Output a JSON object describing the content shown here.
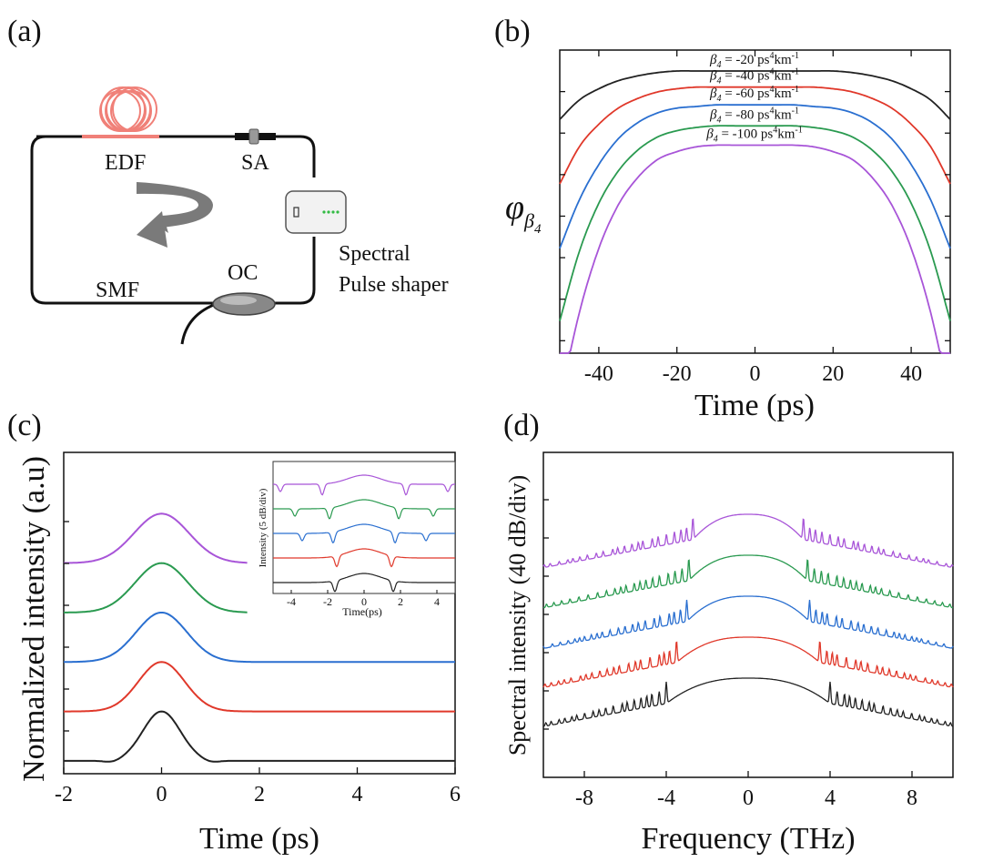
{
  "panels": {
    "a": {
      "tag": "(a)",
      "labels": {
        "edf": "EDF",
        "sa": "SA",
        "smf": "SMF",
        "oc": "OC",
        "shaper_line1": "Spectral",
        "shaper_line2": "Pulse shaper"
      },
      "colors": {
        "edf_coil": "#f08078",
        "fiber": "#111111",
        "arrow": "#7a7a7a",
        "leds": "#33bb44"
      }
    },
    "b": {
      "tag": "(b)"
    },
    "c": {
      "tag": "(c)"
    },
    "d": {
      "tag": "(d)"
    }
  },
  "chart_data": [
    {
      "panel": "b",
      "type": "line",
      "xlabel": "Time (ps)",
      "ylabel": "φβ4",
      "ylabel_main": "φ",
      "ylabel_sub": "β",
      "ylabel_subsub": "4",
      "xlim": [
        -50,
        50
      ],
      "xticks": [
        -40,
        -20,
        0,
        20,
        40
      ],
      "x": [
        -50,
        -45,
        -40,
        -35,
        -30,
        -25,
        -20,
        -15,
        -10,
        -5,
        0,
        5,
        10,
        15,
        20,
        25,
        30,
        35,
        40,
        45,
        50
      ],
      "series": [
        {
          "name": "β4 = -20 ps⁴km⁻¹",
          "label_prefix": "β",
          "label_sub": "4",
          "label_mid": " = -20 ps",
          "label_sup1": "4",
          "label_mid2": "km",
          "label_sup2": "-1",
          "color": "#222222",
          "values": [
            0.7,
            0.82,
            0.89,
            0.94,
            0.97,
            0.99,
            1.0,
            1.0,
            1.0,
            1.0,
            1.0,
            1.0,
            1.0,
            1.0,
            1.0,
            0.99,
            0.97,
            0.94,
            0.89,
            0.82,
            0.7
          ]
        },
        {
          "name": "β4 = -40 ps⁴km⁻¹",
          "label_prefix": "β",
          "label_sub": "4",
          "label_mid": " = -40 ps",
          "label_sup1": "4",
          "label_mid2": "km",
          "label_sup2": "-1",
          "color": "#e0382a",
          "values": [
            0.3,
            0.53,
            0.67,
            0.77,
            0.83,
            0.87,
            0.89,
            0.9,
            0.9,
            0.9,
            0.9,
            0.9,
            0.9,
            0.9,
            0.89,
            0.87,
            0.83,
            0.77,
            0.67,
            0.53,
            0.3
          ]
        },
        {
          "name": "β4 = -60 ps⁴km⁻¹",
          "label_prefix": "β",
          "label_sub": "4",
          "label_mid": " = -60 ps",
          "label_sup1": "4",
          "label_mid2": "km",
          "label_sup2": "-1",
          "color": "#2a6fd0",
          "values": [
            -0.1,
            0.2,
            0.42,
            0.58,
            0.68,
            0.74,
            0.77,
            0.78,
            0.79,
            0.79,
            0.79,
            0.79,
            0.79,
            0.78,
            0.77,
            0.74,
            0.68,
            0.58,
            0.42,
            0.2,
            -0.1
          ]
        },
        {
          "name": "β4 = -80 ps⁴km⁻¹",
          "label_prefix": "β",
          "label_sub": "4",
          "label_mid": " = -80 ps",
          "label_sup1": "4",
          "label_mid2": "km",
          "label_sup2": "-1",
          "color": "#2a9a50",
          "values": [
            -0.55,
            -0.12,
            0.18,
            0.38,
            0.51,
            0.59,
            0.63,
            0.65,
            0.66,
            0.66,
            0.66,
            0.66,
            0.66,
            0.65,
            0.63,
            0.59,
            0.51,
            0.38,
            0.18,
            -0.12,
            -0.55
          ]
        },
        {
          "name": "β4 = -100 ps⁴km⁻¹",
          "label_prefix": "β",
          "label_sub": "4",
          "label_mid": " = -100 ps",
          "label_sup1": "4",
          "label_mid2": "km",
          "label_sup2": "-1",
          "color": "#a855d8",
          "values": [
            -1.05,
            -0.5,
            -0.1,
            0.17,
            0.34,
            0.45,
            0.5,
            0.53,
            0.54,
            0.54,
            0.54,
            0.54,
            0.54,
            0.53,
            0.5,
            0.45,
            0.34,
            0.17,
            -0.1,
            -0.5,
            -1.05
          ]
        }
      ],
      "ylim": [
        -0.75,
        1.13
      ]
    },
    {
      "panel": "c",
      "type": "line",
      "xlabel": "Time (ps)",
      "ylabel": "Normalized intensity (a.u)",
      "xlim": [
        -2,
        6
      ],
      "xticks": [
        -2,
        0,
        2,
        4,
        6
      ],
      "ylim": [
        -0.2,
        6.3
      ],
      "series": [
        {
          "color": "#222222",
          "offset": 0,
          "width": 0.85,
          "end": 6
        },
        {
          "color": "#e0382a",
          "offset": 1,
          "width": 1.05,
          "end": 6
        },
        {
          "color": "#2a6fd0",
          "offset": 2,
          "width": 1.15,
          "end": 6
        },
        {
          "color": "#2a9a50",
          "offset": 3,
          "width": 1.2,
          "end": 1.75
        },
        {
          "color": "#a855d8",
          "offset": 4,
          "width": 1.25,
          "end": 1.75
        }
      ],
      "inset": {
        "xlabel": "Time(ps)",
        "ylabel": "Intensity (5 dB/div)",
        "xlim": [
          -5,
          5
        ],
        "xticks": [
          -4,
          -2,
          0,
          2,
          4
        ],
        "series": [
          {
            "color": "#222222",
            "dip": 1.6
          },
          {
            "color": "#e0382a",
            "dip": 1.5
          },
          {
            "color": "#2a6fd0",
            "dip": 1.7
          },
          {
            "color": "#2a9a50",
            "dip": 1.9
          },
          {
            "color": "#a855d8",
            "dip": 2.3
          }
        ]
      }
    },
    {
      "panel": "d",
      "type": "line",
      "xlabel": "Frequency (THz)",
      "ylabel": "Spectral intensity (40 dB/div)",
      "xlim": [
        -10,
        10
      ],
      "xticks": [
        -8,
        -4,
        0,
        4,
        8
      ],
      "series": [
        {
          "color": "#222222",
          "edge": 4.0
        },
        {
          "color": "#e0382a",
          "edge": 3.5
        },
        {
          "color": "#2a6fd0",
          "edge": 3.0
        },
        {
          "color": "#2a9a50",
          "edge": 2.9
        },
        {
          "color": "#a855d8",
          "edge": 2.7
        }
      ]
    }
  ]
}
